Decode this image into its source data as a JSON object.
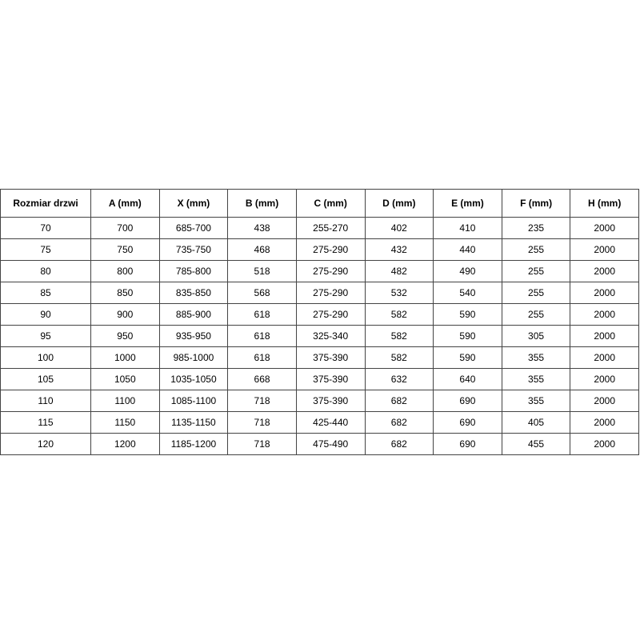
{
  "table": {
    "header": [
      "Rozmiar drzwi",
      "A (mm)",
      "X (mm)",
      "B (mm)",
      "C (mm)",
      "D (mm)",
      "E (mm)",
      "F (mm)",
      "H (mm)"
    ],
    "rows": [
      [
        "70",
        "700",
        "685-700",
        "438",
        "255-270",
        "402",
        "410",
        "235",
        "2000"
      ],
      [
        "75",
        "750",
        "735-750",
        "468",
        "275-290",
        "432",
        "440",
        "255",
        "2000"
      ],
      [
        "80",
        "800",
        "785-800",
        "518",
        "275-290",
        "482",
        "490",
        "255",
        "2000"
      ],
      [
        "85",
        "850",
        "835-850",
        "568",
        "275-290",
        "532",
        "540",
        "255",
        "2000"
      ],
      [
        "90",
        "900",
        "885-900",
        "618",
        "275-290",
        "582",
        "590",
        "255",
        "2000"
      ],
      [
        "95",
        "950",
        "935-950",
        "618",
        "325-340",
        "582",
        "590",
        "305",
        "2000"
      ],
      [
        "100",
        "1000",
        "985-1000",
        "618",
        "375-390",
        "582",
        "590",
        "355",
        "2000"
      ],
      [
        "105",
        "1050",
        "1035-1050",
        "668",
        "375-390",
        "632",
        "640",
        "355",
        "2000"
      ],
      [
        "110",
        "1100",
        "1085-1100",
        "718",
        "375-390",
        "682",
        "690",
        "355",
        "2000"
      ],
      [
        "115",
        "1150",
        "1135-1150",
        "718",
        "425-440",
        "682",
        "690",
        "405",
        "2000"
      ],
      [
        "120",
        "1200",
        "1185-1200",
        "718",
        "475-490",
        "682",
        "690",
        "455",
        "2000"
      ]
    ]
  }
}
